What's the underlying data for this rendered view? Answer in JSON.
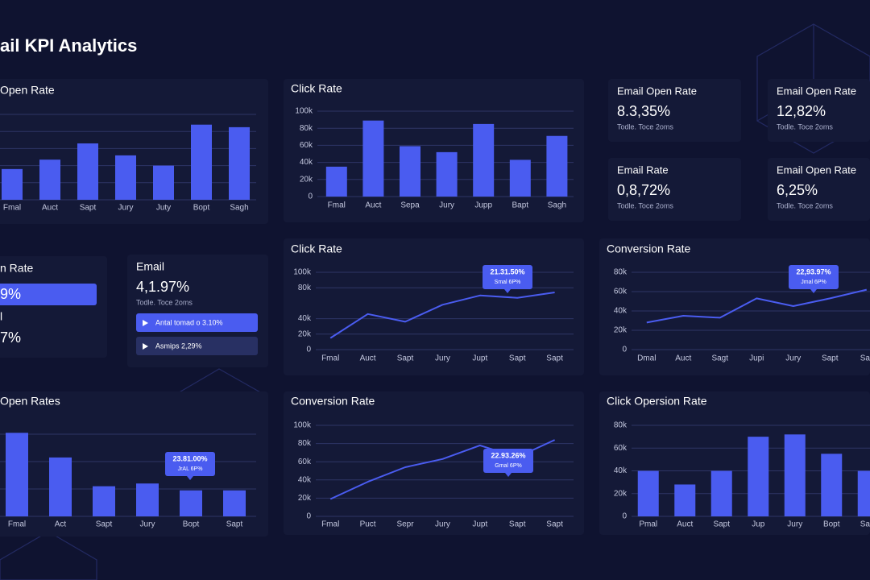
{
  "title": "ail KPI Analytics",
  "kpi_cards": [
    {
      "label": "Email Open Rate",
      "value": "8.3,35%",
      "note": "Todle. Toce 2oms"
    },
    {
      "label": "Email Open Rate",
      "value": "12,82%",
      "note": "Todle. Toce 2oms"
    },
    {
      "label": "Email Rate",
      "value": "0,8,72%",
      "note": "Todle. Toce 2oms"
    },
    {
      "label": "Email Open Rate",
      "value": "6,25%",
      "note": "Todle. Toce 2oms"
    }
  ],
  "side_panel": {
    "title": "n Rate",
    "highlight": "9%",
    "label": "l",
    "value": "7%"
  },
  "email_panel": {
    "label": "Email",
    "value": "4,1.97%",
    "note": "Todle. Toce 2oms",
    "buttons": [
      "Antal tomad o 3.10%",
      "Asmips 2,29%"
    ]
  },
  "chart_data": [
    {
      "type": "bar",
      "title": "Open Rate",
      "categories": [
        "Fmal",
        "Auct",
        "Sapt",
        "Jury",
        "Juty",
        "Bopt",
        "Sagh"
      ],
      "values": [
        36000,
        47000,
        66000,
        52000,
        40000,
        88000,
        85000
      ],
      "color": "#4a5cf0",
      "ylim": [
        0,
        100000
      ],
      "grid": true
    },
    {
      "type": "bar",
      "title": "Click Rate",
      "categories": [
        "Fmal",
        "Auct",
        "Sepa",
        "Jury",
        "Jupp",
        "Bapt",
        "Sagh"
      ],
      "values": [
        35000,
        89000,
        59000,
        52000,
        85000,
        43000,
        71000
      ],
      "color": "#4a5cf0",
      "ylim": [
        0,
        100000
      ],
      "yticks": [
        0,
        {
          "value": 20000,
          "label": "20k"
        },
        {
          "value": 40000,
          "label": "40k"
        },
        {
          "value": 60000,
          "label": "60k"
        },
        {
          "value": 80000,
          "label": "80k"
        },
        {
          "value": 100000,
          "label": "100k"
        }
      ],
      "grid": true
    },
    {
      "type": "line",
      "title": "Click Rate",
      "categories": [
        "Fmal",
        "Auct",
        "Sapt",
        "Jury",
        "Jupt",
        "Sapt",
        "Sapt"
      ],
      "values": [
        15000,
        46000,
        36000,
        58000,
        70000,
        67000,
        74000
      ],
      "color": "#4a5cf0",
      "ylim": [
        0,
        100000
      ],
      "yticks": [
        0,
        {
          "value": 20000,
          "label": "20k"
        },
        {
          "value": 40000,
          "label": "40k"
        },
        {
          "value": 80000,
          "label": "80k"
        },
        {
          "value": 100000,
          "label": "100k"
        }
      ],
      "grid": true,
      "annotation": [
        "21.31.50%",
        "Smal 6P%"
      ]
    },
    {
      "type": "line",
      "title": "Conversion Rate",
      "categories": [
        "Dmal",
        "Auct",
        "Sagt",
        "Jupi",
        "Jury",
        "Sapt",
        "Sa"
      ],
      "values": [
        28000,
        35000,
        33000,
        53000,
        45000,
        53000,
        62000
      ],
      "color": "#4a5cf0",
      "ylim": [
        0,
        80000
      ],
      "yticks": [
        0,
        {
          "value": 20000,
          "label": "20k"
        },
        {
          "value": 40000,
          "label": "40k"
        },
        {
          "value": 60000,
          "label": "60k"
        },
        {
          "value": 80000,
          "label": "80k"
        }
      ],
      "grid": true,
      "annotation": [
        "22,93.97%",
        "Jmal 6P%"
      ]
    },
    {
      "type": "bar",
      "title": "Open Rates",
      "categories": [
        "Fmal",
        "Act",
        "Sapt",
        "Jury",
        "Bopt",
        "Sapt"
      ],
      "values": [
        61000,
        43000,
        22000,
        24000,
        19000,
        19000
      ],
      "color": "#4a5cf0",
      "ylim": [
        0,
        80000
      ],
      "grid": true,
      "annotation": [
        "23.81.00%",
        "JrAL 6P%"
      ]
    },
    {
      "type": "line",
      "title": "Conversion Rate",
      "categories": [
        "Fmal",
        "Puct",
        "Sepr",
        "Jury",
        "Jupt",
        "Sapt",
        "Sapt"
      ],
      "values": [
        19000,
        38000,
        54000,
        63000,
        78000,
        65000,
        84000
      ],
      "color": "#4a5cf0",
      "ylim": [
        0,
        100000
      ],
      "yticks": [
        0,
        {
          "value": 20000,
          "label": "20k"
        },
        {
          "value": 40000,
          "label": "40k"
        },
        {
          "value": 60000,
          "label": "60k"
        },
        {
          "value": 80000,
          "label": "80k"
        },
        {
          "value": 100000,
          "label": "100k"
        }
      ],
      "grid": true,
      "annotation": [
        "22.93.26%",
        "Gmal 6P%"
      ]
    },
    {
      "type": "bar",
      "title": "Click Opersion Rate",
      "categories": [
        "Pmal",
        "Auct",
        "Sapt",
        "Jup",
        "Jury",
        "Bopt",
        "Sa"
      ],
      "values": [
        40000,
        28000,
        40000,
        70000,
        72000,
        55000,
        40000
      ],
      "color": "#4a5cf0",
      "ylim": [
        0,
        80000
      ],
      "yticks": [
        0,
        {
          "value": 20000,
          "label": "20k"
        },
        {
          "value": 40000,
          "label": "40k"
        },
        {
          "value": 60000,
          "label": "60k"
        },
        {
          "value": 80000,
          "label": "80k"
        }
      ],
      "grid": true
    }
  ]
}
